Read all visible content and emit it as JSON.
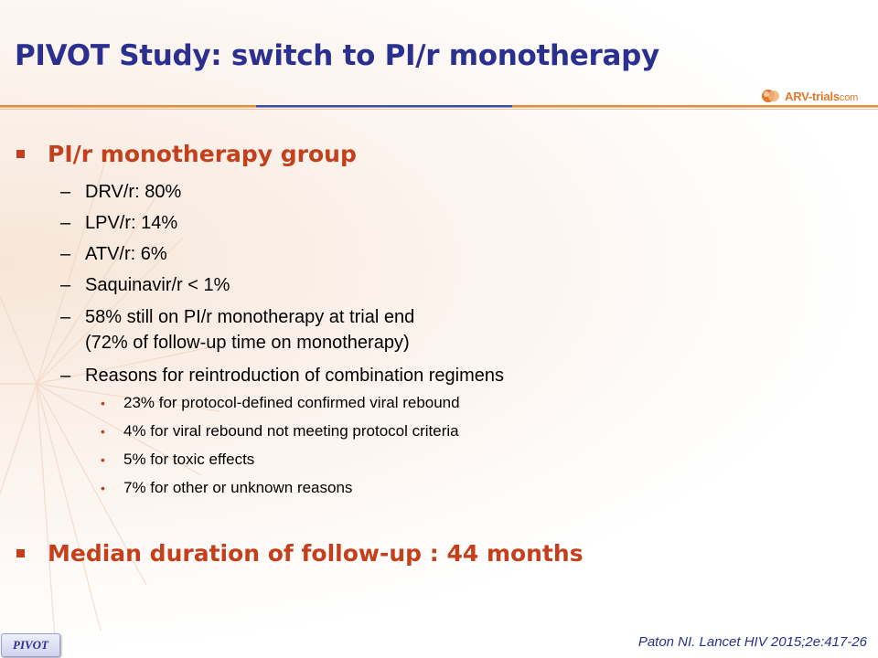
{
  "slide": {
    "title": "PIVOT Study: switch to PI/r monotherapy",
    "logo": {
      "name": "ARV-trials",
      "suffix": "com"
    },
    "bullets": [
      {
        "text": "PI/r monotherapy group",
        "items": [
          {
            "text": "DRV/r: 80%"
          },
          {
            "text": "LPV/r: 14%"
          },
          {
            "text": "ATV/r: 6%"
          },
          {
            "text": "Saquinavir/r < 1%"
          },
          {
            "text": "58% still on PI/r monotherapy at trial end",
            "text2": "(72% of follow-up time on monotherapy)"
          },
          {
            "text": "Reasons for reintroduction of combination regimens"
          }
        ],
        "subitems": [
          "23% for protocol-defined confirmed viral rebound",
          "4% for viral rebound not meeting protocol criteria",
          "5% for toxic effects",
          "7% for other or unknown  reasons"
        ]
      },
      {
        "text": "Median duration of follow-up : 44 months"
      }
    ],
    "footer_badge": "PIVOT",
    "citation": "Paton NI. Lancet HIV 2015;2e:417-26"
  },
  "colors": {
    "title": "#2b2f8f",
    "accent": "#c4401c",
    "rule_blue": "#3a4aa8",
    "rule_orange": "#e8893a"
  }
}
